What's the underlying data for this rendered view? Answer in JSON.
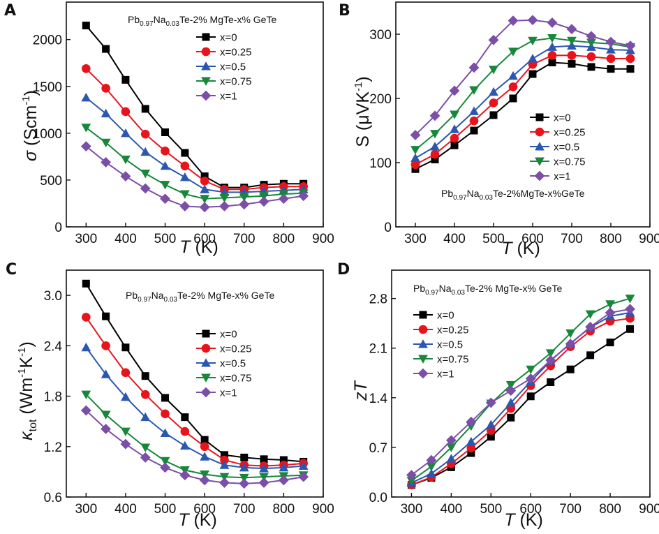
{
  "chart_data": [
    {
      "panel": "A",
      "type": "line",
      "composition": {
        "main": "Pb",
        "sub1": "0.97",
        "mid": "Na",
        "sub2": "0.03",
        "rest": "Te-2% MgTe-x% GeTe"
      },
      "ylabel": {
        "sym": "σ",
        "unit": "(Scm",
        "sup": "-1",
        "close": ")"
      },
      "xlabel": {
        "sym": "T",
        "unit": "(K)"
      },
      "xlim": [
        250,
        900
      ],
      "ylim": [
        0,
        2400
      ],
      "xticks": [
        300,
        400,
        500,
        600,
        700,
        800,
        900
      ],
      "xtick_labels": [
        "300",
        "400",
        "500",
        "600",
        "700",
        "800",
        "900"
      ],
      "yticks": [
        0,
        500,
        1000,
        1500,
        2000
      ],
      "ytick_labels": [
        "0",
        "500",
        "1000",
        "1500",
        "2000"
      ],
      "x": [
        300,
        350,
        400,
        450,
        500,
        550,
        600,
        650,
        700,
        750,
        800,
        850
      ],
      "series": [
        {
          "name": "x=0",
          "color": "#000000",
          "marker": "square",
          "values": [
            2150,
            1900,
            1570,
            1260,
            1010,
            790,
            540,
            420,
            420,
            450,
            460,
            460
          ]
        },
        {
          "name": "x=0.25",
          "color": "#e8141c",
          "marker": "circle",
          "values": [
            1690,
            1480,
            1230,
            990,
            810,
            650,
            490,
            400,
            400,
            420,
            430,
            430
          ]
        },
        {
          "name": "x=0.5",
          "color": "#2a57b0",
          "marker": "triangle-up",
          "values": [
            1380,
            1210,
            1000,
            800,
            650,
            530,
            400,
            370,
            370,
            380,
            390,
            400
          ]
        },
        {
          "name": "x=0.75",
          "color": "#17873a",
          "marker": "triangle-down",
          "values": [
            1060,
            900,
            720,
            570,
            450,
            350,
            300,
            310,
            320,
            330,
            350,
            360
          ]
        },
        {
          "name": "x=1",
          "color": "#7b4fa8",
          "marker": "diamond",
          "values": [
            860,
            690,
            540,
            410,
            300,
            220,
            210,
            220,
            240,
            270,
            300,
            330
          ]
        }
      ]
    },
    {
      "panel": "B",
      "type": "line",
      "composition": {
        "main": "Pb",
        "sub1": "0.97",
        "mid": "Na",
        "sub2": "0.03",
        "rest": "Te-2%MgTe-x%GeTe"
      },
      "ylabel": {
        "sym": "S (μVK",
        "unit": "",
        "sup": "-1",
        "close": ")"
      },
      "xlabel": {
        "sym": "T",
        "unit": "(K)"
      },
      "xlim": [
        250,
        900
      ],
      "ylim": [
        0,
        350
      ],
      "xticks": [
        300,
        400,
        500,
        600,
        700,
        800,
        900
      ],
      "xtick_labels": [
        "300",
        "400",
        "500",
        "600",
        "700",
        "800",
        "900"
      ],
      "yticks": [
        0,
        100,
        200,
        300
      ],
      "ytick_labels": [
        "0",
        "100",
        "200",
        "300"
      ],
      "x": [
        300,
        350,
        400,
        450,
        500,
        550,
        600,
        650,
        700,
        750,
        800,
        850
      ],
      "series": [
        {
          "name": "x=0",
          "color": "#000000",
          "marker": "square",
          "values": [
            90,
            105,
            127,
            150,
            174,
            200,
            238,
            256,
            254,
            249,
            246,
            246
          ]
        },
        {
          "name": "x=0.25",
          "color": "#e8141c",
          "marker": "circle",
          "values": [
            97,
            113,
            138,
            165,
            193,
            218,
            253,
            267,
            267,
            265,
            262,
            262
          ]
        },
        {
          "name": "x=0.5",
          "color": "#2a57b0",
          "marker": "triangle-up",
          "values": [
            107,
            125,
            152,
            180,
            210,
            235,
            262,
            280,
            282,
            280,
            276,
            275
          ]
        },
        {
          "name": "x=0.75",
          "color": "#17873a",
          "marker": "triangle-down",
          "values": [
            120,
            145,
            175,
            213,
            245,
            273,
            290,
            294,
            290,
            287,
            285,
            280
          ]
        },
        {
          "name": "x=1",
          "color": "#7b4fa8",
          "marker": "diamond",
          "values": [
            143,
            173,
            212,
            248,
            291,
            321,
            322,
            318,
            308,
            297,
            288,
            282
          ]
        }
      ]
    },
    {
      "panel": "C",
      "type": "line",
      "composition": {
        "main": "Pb",
        "sub1": "0.97",
        "mid": "Na",
        "sub2": "0.03",
        "rest": "Te-2% MgTe-x% GeTe"
      },
      "ylabel": {
        "sym": "κ",
        "sub": "tot",
        "unit": "(Wm",
        "sup": "-1",
        "unit2": "K",
        "sup2": "-1",
        "close": ")"
      },
      "xlabel": {
        "sym": "T",
        "unit": "(K)"
      },
      "xlim": [
        250,
        900
      ],
      "ylim": [
        0.6,
        3.3
      ],
      "xticks": [
        300,
        400,
        500,
        600,
        700,
        800,
        900
      ],
      "xtick_labels": [
        "300",
        "400",
        "500",
        "600",
        "700",
        "800",
        "900"
      ],
      "yticks": [
        0.6,
        1.2,
        1.8,
        2.4,
        3.0
      ],
      "ytick_labels": [
        "0.6",
        "1.2",
        "1.8",
        "2.4",
        "3.0"
      ],
      "x": [
        300,
        350,
        400,
        450,
        500,
        550,
        600,
        650,
        700,
        750,
        800,
        850
      ],
      "series": [
        {
          "name": "x=0",
          "color": "#000000",
          "marker": "square",
          "values": [
            3.14,
            2.75,
            2.38,
            2.04,
            1.78,
            1.55,
            1.28,
            1.1,
            1.07,
            1.05,
            1.04,
            1.02
          ]
        },
        {
          "name": "x=0.25",
          "color": "#e8141c",
          "marker": "circle",
          "values": [
            2.74,
            2.4,
            2.08,
            1.82,
            1.59,
            1.38,
            1.2,
            1.04,
            0.98,
            0.97,
            0.98,
            1.0
          ]
        },
        {
          "name": "x=0.5",
          "color": "#2a57b0",
          "marker": "triangle-up",
          "values": [
            2.38,
            2.06,
            1.79,
            1.55,
            1.36,
            1.21,
            1.08,
            0.98,
            0.95,
            0.94,
            0.95,
            0.97
          ]
        },
        {
          "name": "x=0.75",
          "color": "#17873a",
          "marker": "triangle-down",
          "values": [
            1.82,
            1.58,
            1.38,
            1.19,
            1.03,
            0.92,
            0.87,
            0.84,
            0.83,
            0.84,
            0.85,
            0.86
          ]
        },
        {
          "name": "x=1",
          "color": "#7b4fa8",
          "marker": "diamond",
          "values": [
            1.63,
            1.41,
            1.23,
            1.07,
            0.95,
            0.86,
            0.8,
            0.77,
            0.76,
            0.77,
            0.8,
            0.84
          ]
        }
      ]
    },
    {
      "panel": "D",
      "type": "line",
      "composition": {
        "main": "Pb",
        "sub1": "0.97",
        "mid": "Na",
        "sub2": "0.03",
        "rest": "Te-2% MgTe-x% GeTe"
      },
      "ylabel": {
        "sym": "zT",
        "unit": "",
        "sup": "",
        "close": ""
      },
      "xlabel": {
        "sym": "T",
        "unit": "(K)"
      },
      "xlim": [
        250,
        900
      ],
      "ylim": [
        0,
        3.2
      ],
      "xticks": [
        300,
        400,
        500,
        600,
        700,
        800,
        900
      ],
      "xtick_labels": [
        "300",
        "400",
        "500",
        "600",
        "700",
        "800",
        "900"
      ],
      "yticks": [
        0,
        0.7,
        1.4,
        2.1,
        2.8
      ],
      "ytick_labels": [
        "0.0",
        "0.7",
        "1.4",
        "2.1",
        "2.8"
      ],
      "x": [
        300,
        350,
        400,
        450,
        500,
        550,
        600,
        650,
        700,
        750,
        800,
        850
      ],
      "series": [
        {
          "name": "x=0",
          "color": "#000000",
          "marker": "square",
          "values": [
            0.17,
            0.27,
            0.42,
            0.62,
            0.85,
            1.12,
            1.42,
            1.62,
            1.8,
            2.0,
            2.18,
            2.37
          ]
        },
        {
          "name": "x=0.25",
          "color": "#e8141c",
          "marker": "circle",
          "values": [
            0.17,
            0.28,
            0.47,
            0.69,
            0.94,
            1.25,
            1.57,
            1.85,
            2.12,
            2.34,
            2.48,
            2.52
          ]
        },
        {
          "name": "x=0.5",
          "color": "#2a57b0",
          "marker": "triangle-up",
          "values": [
            0.2,
            0.33,
            0.54,
            0.78,
            1.02,
            1.33,
            1.63,
            1.92,
            2.17,
            2.39,
            2.55,
            2.6
          ]
        },
        {
          "name": "x=0.75",
          "color": "#17873a",
          "marker": "triangle-down",
          "values": [
            0.23,
            0.43,
            0.7,
            1.0,
            1.32,
            1.58,
            1.8,
            2.03,
            2.31,
            2.58,
            2.72,
            2.8
          ]
        },
        {
          "name": "x=1",
          "color": "#7b4fa8",
          "marker": "diamond",
          "values": [
            0.31,
            0.52,
            0.8,
            1.06,
            1.33,
            1.5,
            1.67,
            1.93,
            2.16,
            2.4,
            2.6,
            2.65
          ]
        }
      ]
    }
  ]
}
